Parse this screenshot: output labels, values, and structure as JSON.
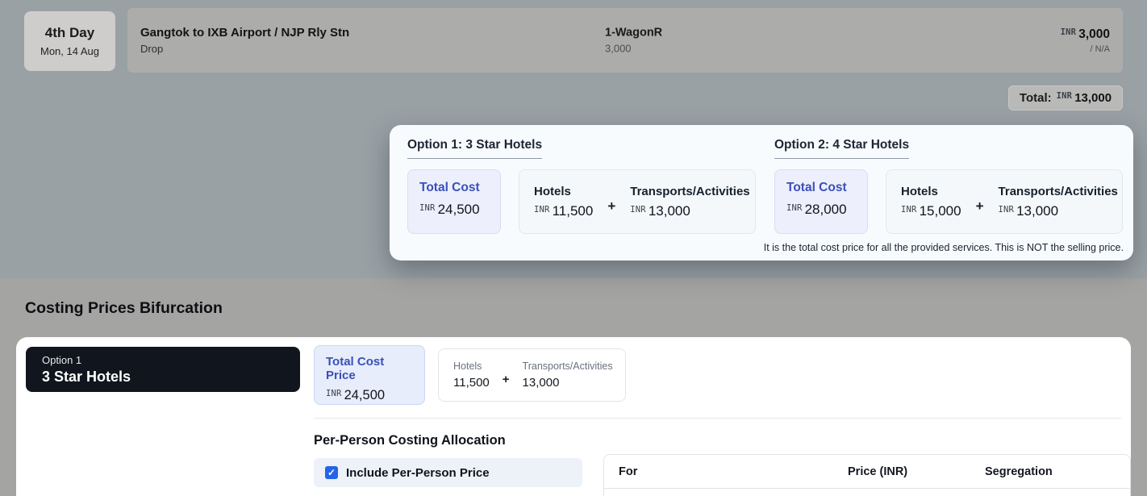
{
  "colors": {
    "accent": "#3a50b8",
    "checkbox_blue": "#2563eb",
    "badge_dark": "#10151e",
    "backdrop_top": "#99a1a5",
    "backdrop_bottom": "#a4a4a3"
  },
  "icons": {
    "check": "✓"
  },
  "day_row": {
    "day": "4th Day",
    "date": "Mon, 14 Aug",
    "title": "Gangtok to IXB Airport / NJP Rly Stn",
    "subtitle": "Drop",
    "vehicle": "1-WagonR",
    "vehicle_price": "3,000",
    "currency": "INR",
    "amount": "3,000",
    "per": "/ N/A"
  },
  "total_badge": {
    "label": "Total:",
    "currency": "INR",
    "amount": "13,000"
  },
  "options_popover": {
    "options": [
      {
        "heading": "Option 1: 3 Star Hotels",
        "total_label": "Total Cost",
        "currency": "INR",
        "total": "24,500",
        "hotels_label": "Hotels",
        "hotels": "11,500",
        "plus": "+",
        "transports_label": "Transports/Activities",
        "transports": "13,000"
      },
      {
        "heading": "Option 2: 4 Star Hotels",
        "total_label": "Total Cost",
        "currency": "INR",
        "total": "28,000",
        "hotels_label": "Hotels",
        "hotels": "15,000",
        "plus": "+",
        "transports_label": "Transports/Activities",
        "transports": "13,000"
      }
    ],
    "note": "It is the total cost price for all the provided services. This is NOT the selling price."
  },
  "section": {
    "heading": "Costing Prices Bifurcation"
  },
  "costing_card": {
    "badge": {
      "option": "Option 1",
      "name": "3 Star Hotels"
    },
    "total_box": {
      "label": "Total Cost Price",
      "currency": "INR",
      "amount": "24,500"
    },
    "breakdown": {
      "hotels_label": "Hotels",
      "hotels": "11,500",
      "plus": "+",
      "transports_label": "Transports/Activities",
      "transports": "13,000"
    },
    "per_person": {
      "heading": "Per-Person Costing Allocation",
      "checkbox_label": "Include Per-Person Price",
      "checked": true
    },
    "table": {
      "headers": [
        "For",
        "Price (INR)",
        "Segregation"
      ]
    }
  }
}
